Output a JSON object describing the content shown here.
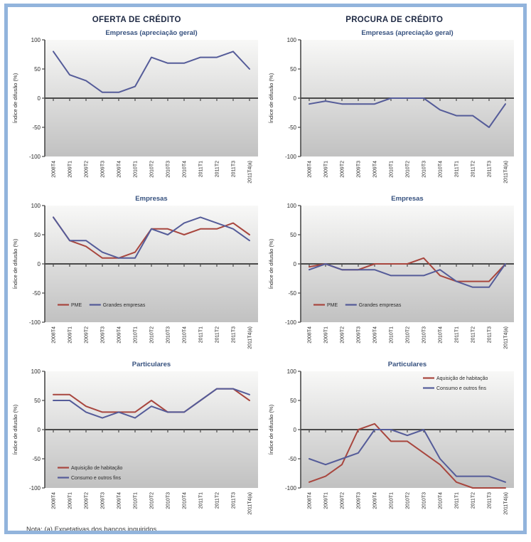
{
  "columns": [
    {
      "title": "OFERTA DE CRÉDITO"
    },
    {
      "title": "PROCURA DE CRÉDITO"
    }
  ],
  "note": "Nota: (a) Expetativas dos bancos inquiridos.",
  "colors": {
    "frame_border": "#92b4dc",
    "header_text": "#1f2a44",
    "chart_title": "#35507e",
    "series_blue": "#555c99",
    "series_red": "#a8463e",
    "axis": "#4a4a4a",
    "tick_label": "#2b2b2b",
    "plot_gradient_top": "#f8f8f7",
    "plot_gradient_bottom": "#c1c1c1"
  },
  "chart_data": [
    {
      "type": "line",
      "panel": "OFERTA DE CRÉDITO",
      "title": "Empresas (apreciação geral)",
      "ylabel": "Índice de difusão (%)",
      "ylim": [
        -100,
        100
      ],
      "yticks": [
        100,
        50,
        0,
        -50,
        -100
      ],
      "legend_position": null,
      "categories": [
        "2008T4",
        "2009T1",
        "2009T2",
        "2009T3",
        "2009T4",
        "2010T1",
        "2010T2",
        "2010T3",
        "2010T4",
        "2011T1",
        "2011T2",
        "2011T3",
        "2011T4(a)"
      ],
      "series": [
        {
          "name": "",
          "color": "#555c99",
          "values": [
            80,
            40,
            30,
            10,
            10,
            20,
            70,
            60,
            60,
            70,
            70,
            80,
            50
          ]
        }
      ]
    },
    {
      "type": "line",
      "panel": "PROCURA DE CRÉDITO",
      "title": "Empresas (apreciação geral)",
      "ylabel": "Índice de difusão (%)",
      "ylim": [
        -100,
        100
      ],
      "yticks": [
        100,
        50,
        0,
        -50,
        -100
      ],
      "legend_position": null,
      "categories": [
        "2008T4",
        "2009T1",
        "2009T2",
        "2009T3",
        "2009T4",
        "2010T1",
        "2010T2",
        "2010T3",
        "2010T4",
        "2011T1",
        "2011T2",
        "2011T3",
        "2011T4(a)"
      ],
      "series": [
        {
          "name": "",
          "color": "#555c99",
          "values": [
            -10,
            -5,
            -10,
            -10,
            -10,
            0,
            0,
            0,
            -20,
            -30,
            -30,
            -50,
            -10
          ]
        }
      ]
    },
    {
      "type": "line",
      "panel": "OFERTA DE CRÉDITO",
      "title": "Empresas",
      "ylabel": "Índice de difusão (%)",
      "ylim": [
        -100,
        100
      ],
      "yticks": [
        100,
        50,
        0,
        -50,
        -100
      ],
      "legend_position": "bottom-left",
      "categories": [
        "2008T4",
        "2009T1",
        "2009T2",
        "2009T3",
        "2009T4",
        "2010T1",
        "2010T2",
        "2010T3",
        "2010T4",
        "2011T1",
        "2011T2",
        "2011T3",
        "2011T4(a)"
      ],
      "series": [
        {
          "name": "PME",
          "color": "#a8463e",
          "values": [
            80,
            40,
            30,
            10,
            10,
            20,
            60,
            60,
            50,
            60,
            60,
            70,
            50
          ]
        },
        {
          "name": "Grandes empresas",
          "color": "#555c99",
          "values": [
            80,
            40,
            40,
            20,
            10,
            10,
            60,
            50,
            70,
            80,
            70,
            60,
            40
          ]
        }
      ]
    },
    {
      "type": "line",
      "panel": "PROCURA DE CRÉDITO",
      "title": "Empresas",
      "ylabel": "Índice de difusão (%)",
      "ylim": [
        -100,
        100
      ],
      "yticks": [
        100,
        50,
        0,
        -50,
        -100
      ],
      "legend_position": "bottom-left",
      "categories": [
        "2008T4",
        "2009T1",
        "2009T2",
        "2009T3",
        "2009T4",
        "2010T1",
        "2010T2",
        "2010T3",
        "2010T4",
        "2011T1",
        "2011T2",
        "2011T3",
        "2011T4(a)"
      ],
      "series": [
        {
          "name": "PME",
          "color": "#a8463e",
          "values": [
            -5,
            0,
            -10,
            -10,
            0,
            0,
            0,
            10,
            -20,
            -30,
            -30,
            -30,
            0
          ]
        },
        {
          "name": "Grandes empresas",
          "color": "#555c99",
          "values": [
            -10,
            0,
            -10,
            -10,
            -10,
            -20,
            -20,
            -20,
            -10,
            -30,
            -40,
            -40,
            0
          ]
        }
      ]
    },
    {
      "type": "line",
      "panel": "OFERTA DE CRÉDITO",
      "title": "Particulares",
      "ylabel": "Índice de difusão (%)",
      "ylim": [
        -100,
        100
      ],
      "yticks": [
        100,
        50,
        0,
        -50,
        -100
      ],
      "legend_position": "bottom-left-stacked",
      "categories": [
        "2008T4",
        "2009T1",
        "2009T2",
        "2009T3",
        "2009T4",
        "2010T1",
        "2010T2",
        "2010T3",
        "2010T4",
        "2011T1",
        "2011T2",
        "2011T3",
        "2011T4(a)"
      ],
      "series": [
        {
          "name": "Aquisição de habitação",
          "color": "#a8463e",
          "values": [
            60,
            60,
            40,
            30,
            30,
            30,
            50,
            30,
            30,
            50,
            70,
            70,
            50
          ]
        },
        {
          "name": "Consumo e outros fins",
          "color": "#555c99",
          "values": [
            50,
            50,
            30,
            20,
            30,
            20,
            40,
            30,
            30,
            50,
            70,
            70,
            60
          ]
        }
      ]
    },
    {
      "type": "line",
      "panel": "PROCURA DE CRÉDITO",
      "title": "Particulares",
      "ylabel": "Índice de difusão (%)",
      "ylim": [
        -100,
        100
      ],
      "yticks": [
        100,
        50,
        0,
        -50,
        -100
      ],
      "legend_position": "top-right-stacked",
      "categories": [
        "2008T4",
        "2009T1",
        "2009T2",
        "2009T3",
        "2009T4",
        "2010T1",
        "2010T2",
        "2010T3",
        "2010T4",
        "2011T1",
        "2011T2",
        "2011T3",
        "2011T4(a)"
      ],
      "series": [
        {
          "name": "Aquisição de habitação",
          "color": "#a8463e",
          "values": [
            -90,
            -80,
            -60,
            0,
            10,
            -20,
            -20,
            -40,
            -60,
            -90,
            -100,
            -100,
            -100
          ]
        },
        {
          "name": "Consumo e outros fins",
          "color": "#555c99",
          "values": [
            -50,
            -60,
            -50,
            -40,
            0,
            0,
            -10,
            0,
            -50,
            -80,
            -80,
            -80,
            -90
          ]
        }
      ]
    }
  ]
}
